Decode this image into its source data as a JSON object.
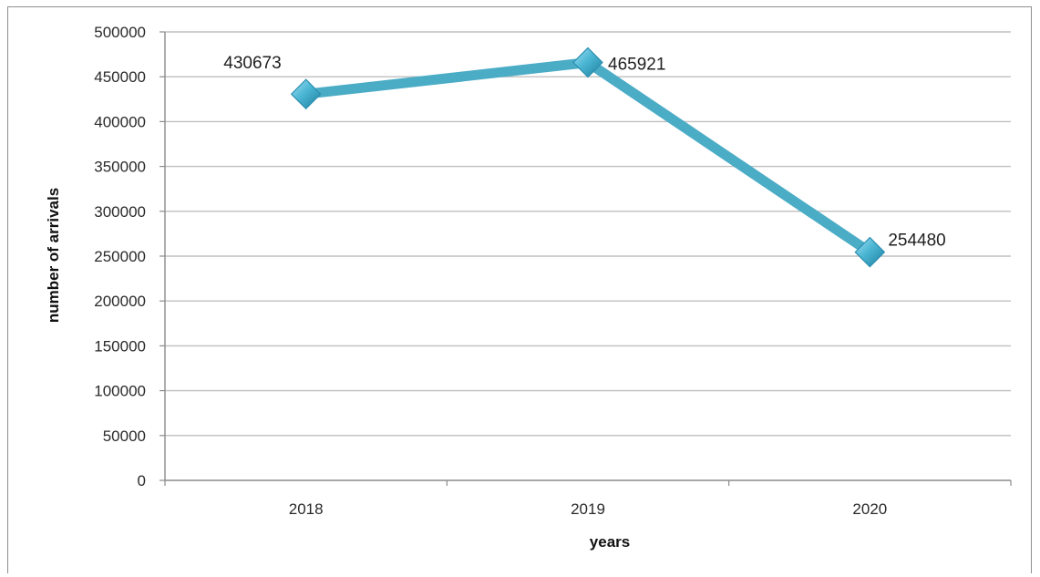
{
  "chart_data": {
    "type": "line",
    "title": "",
    "xlabel": "years",
    "ylabel": "number of arrivals",
    "categories": [
      "2018",
      "2019",
      "2020"
    ],
    "series": [
      {
        "values": [
          430673,
          465921,
          254480
        ],
        "color": "#4bacc6",
        "marker": "diamond"
      }
    ],
    "data_labels": [
      "430673",
      "465921",
      "254480"
    ],
    "ylim": [
      0,
      500000
    ],
    "ytick_step": 50000,
    "yticks": [
      "0",
      "50000",
      "100000",
      "150000",
      "200000",
      "250000",
      "300000",
      "350000",
      "400000",
      "450000",
      "500000"
    ],
    "grid": true,
    "legend": "none",
    "colors": {
      "gridline": "#bfbfbf",
      "axis": "#8c8c8c",
      "line": "#4bacc6",
      "marker_fill": "#4bacc6",
      "frame": "#8f8f8f"
    }
  }
}
